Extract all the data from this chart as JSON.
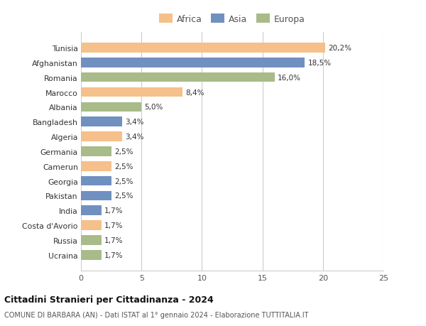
{
  "countries": [
    "Tunisia",
    "Afghanistan",
    "Romania",
    "Marocco",
    "Albania",
    "Bangladesh",
    "Algeria",
    "Germania",
    "Camerun",
    "Georgia",
    "Pakistan",
    "India",
    "Costa d'Avorio",
    "Russia",
    "Ucraina"
  ],
  "values": [
    20.2,
    18.5,
    16.0,
    8.4,
    5.0,
    3.4,
    3.4,
    2.5,
    2.5,
    2.5,
    2.5,
    1.7,
    1.7,
    1.7,
    1.7
  ],
  "labels": [
    "20,2%",
    "18,5%",
    "16,0%",
    "8,4%",
    "5,0%",
    "3,4%",
    "3,4%",
    "2,5%",
    "2,5%",
    "2,5%",
    "2,5%",
    "1,7%",
    "1,7%",
    "1,7%",
    "1,7%"
  ],
  "continents": [
    "Africa",
    "Asia",
    "Europa",
    "Africa",
    "Europa",
    "Asia",
    "Africa",
    "Europa",
    "Africa",
    "Asia",
    "Asia",
    "Asia",
    "Africa",
    "Europa",
    "Europa"
  ],
  "colors": {
    "Africa": "#F5C08A",
    "Asia": "#7090C0",
    "Europa": "#A8BB88"
  },
  "legend_order": [
    "Africa",
    "Asia",
    "Europa"
  ],
  "title": "Cittadini Stranieri per Cittadinanza - 2024",
  "subtitle": "COMUNE DI BARBARA (AN) - Dati ISTAT al 1° gennaio 2024 - Elaborazione TUTTITALIA.IT",
  "xlim": [
    0,
    25
  ],
  "xticks": [
    0,
    5,
    10,
    15,
    20,
    25
  ],
  "background_color": "#ffffff",
  "grid_color": "#cccccc"
}
